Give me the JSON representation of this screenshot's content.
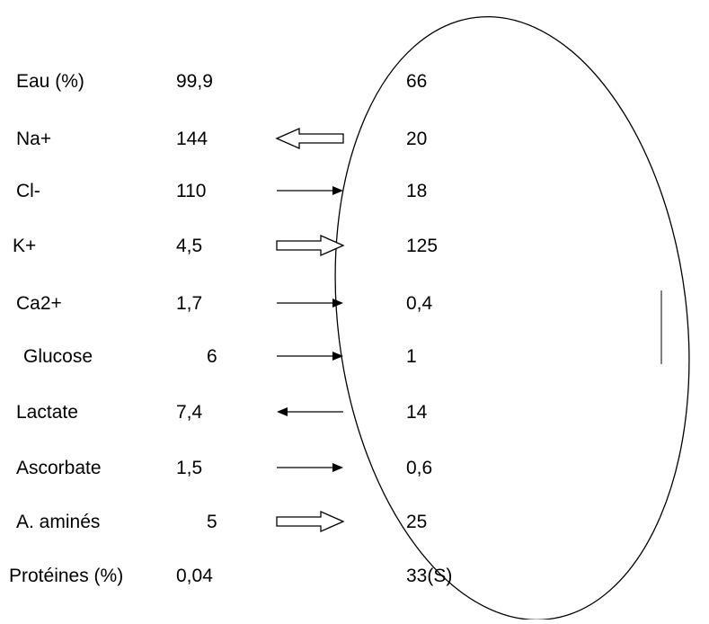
{
  "rows": [
    {
      "name": "Eau (%)",
      "outside": "99,9",
      "inside": "66",
      "arrow": "none"
    },
    {
      "name": "Na+",
      "outside": "144",
      "inside": "20",
      "arrow": "hollow-left"
    },
    {
      "name": "Cl-",
      "outside": "110",
      "inside": "18",
      "arrow": "solid-right"
    },
    {
      "name": "K+",
      "outside": "4,5",
      "inside": "125",
      "arrow": "hollow-right"
    },
    {
      "name": "Ca2+",
      "outside": "1,7",
      "inside": "0,4",
      "arrow": "solid-right"
    },
    {
      "name": "Glucose",
      "outside": "6",
      "inside": "1",
      "arrow": "solid-right"
    },
    {
      "name": "Lactate",
      "outside": "7,4",
      "inside": "14",
      "arrow": "solid-left"
    },
    {
      "name": "Ascorbate",
      "outside": "1,5",
      "inside": "0,6",
      "arrow": "solid-right"
    },
    {
      "name": "A. aminés",
      "outside": "5",
      "inside": "25",
      "arrow": "hollow-right"
    },
    {
      "name": "Protéines (%)",
      "outside": "0,04",
      "inside": "33(S)",
      "arrow": "none"
    }
  ]
}
